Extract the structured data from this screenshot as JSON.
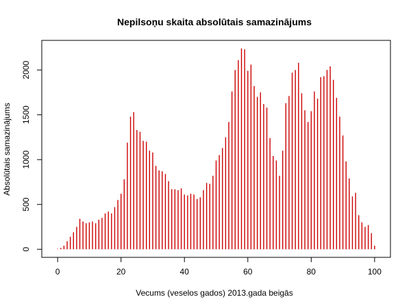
{
  "chart_data": {
    "type": "bar",
    "title": "Nepilsoņu skaita absolūtais samazinājums",
    "xlabel": "Vecums (veselos gados) 2013.gada beigās",
    "ylabel": "Absolūtais samazinājums",
    "xlim": [
      -5,
      105
    ],
    "ylim": [
      -90,
      2330
    ],
    "x_ticks": [
      0,
      20,
      40,
      60,
      80,
      100
    ],
    "y_ticks": [
      0,
      500,
      1000,
      1500,
      2000
    ],
    "bar_color": "#cc0000",
    "x": [
      0,
      1,
      2,
      3,
      4,
      5,
      6,
      7,
      8,
      9,
      10,
      11,
      12,
      13,
      14,
      15,
      16,
      17,
      18,
      19,
      20,
      21,
      22,
      23,
      24,
      25,
      26,
      27,
      28,
      29,
      30,
      31,
      32,
      33,
      34,
      35,
      36,
      37,
      38,
      39,
      40,
      41,
      42,
      43,
      44,
      45,
      46,
      47,
      48,
      49,
      50,
      51,
      52,
      53,
      54,
      55,
      56,
      57,
      58,
      59,
      60,
      61,
      62,
      63,
      64,
      65,
      66,
      67,
      68,
      69,
      70,
      71,
      72,
      73,
      74,
      75,
      76,
      77,
      78,
      79,
      80,
      81,
      82,
      83,
      84,
      85,
      86,
      87,
      88,
      89,
      90,
      91,
      92,
      93,
      94,
      95,
      96,
      97,
      98,
      99,
      100
    ],
    "values": [
      5,
      15,
      40,
      90,
      140,
      190,
      250,
      340,
      310,
      290,
      300,
      310,
      290,
      330,
      350,
      400,
      420,
      400,
      470,
      550,
      620,
      780,
      1190,
      1480,
      1530,
      1330,
      1310,
      1210,
      1200,
      1100,
      1080,
      930,
      880,
      870,
      840,
      760,
      670,
      670,
      660,
      680,
      610,
      600,
      620,
      610,
      560,
      580,
      660,
      740,
      730,
      820,
      990,
      1050,
      1130,
      1250,
      1420,
      1760,
      2000,
      2110,
      2240,
      2230,
      1990,
      2060,
      1820,
      1700,
      1750,
      1620,
      1580,
      1240,
      1040,
      990,
      820,
      1100,
      1630,
      1710,
      1970,
      2000,
      2080,
      1740,
      1550,
      1420,
      1540,
      1760,
      1680,
      1920,
      1930,
      2000,
      2040,
      1890,
      1690,
      1480,
      1270,
      980,
      790,
      590,
      630,
      380,
      300,
      250,
      270,
      180,
      40
    ]
  }
}
